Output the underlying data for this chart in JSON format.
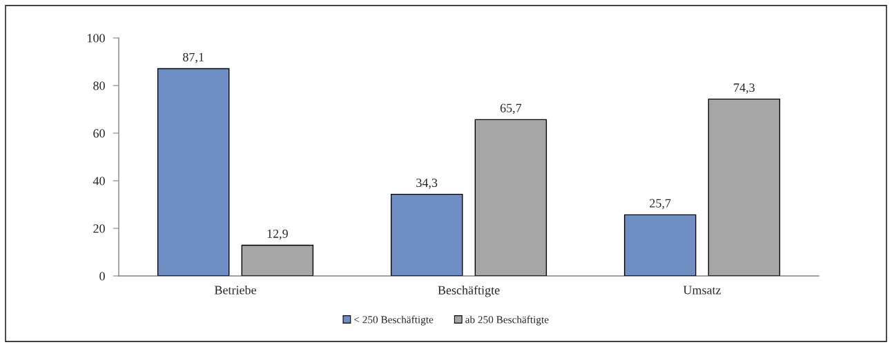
{
  "chart_data": {
    "type": "bar",
    "categories": [
      "Betriebe",
      "Beschäftigte",
      "Umsatz"
    ],
    "series": [
      {
        "name": "< 250 Beschäftigte",
        "color": "#6f8fc4",
        "values": [
          87.1,
          34.3,
          25.7
        ],
        "value_labels": [
          "87,1",
          "34,3",
          "25,7"
        ]
      },
      {
        "name": "ab 250 Beschäftigte",
        "color": "#a6a6a6",
        "values": [
          12.9,
          65.7,
          74.3
        ],
        "value_labels": [
          "12,9",
          "65,7",
          "74,3"
        ]
      }
    ],
    "ylim": [
      0,
      100
    ],
    "yticks": [
      0,
      20,
      40,
      60,
      80,
      100
    ],
    "grid": false,
    "legend": "bottom"
  }
}
